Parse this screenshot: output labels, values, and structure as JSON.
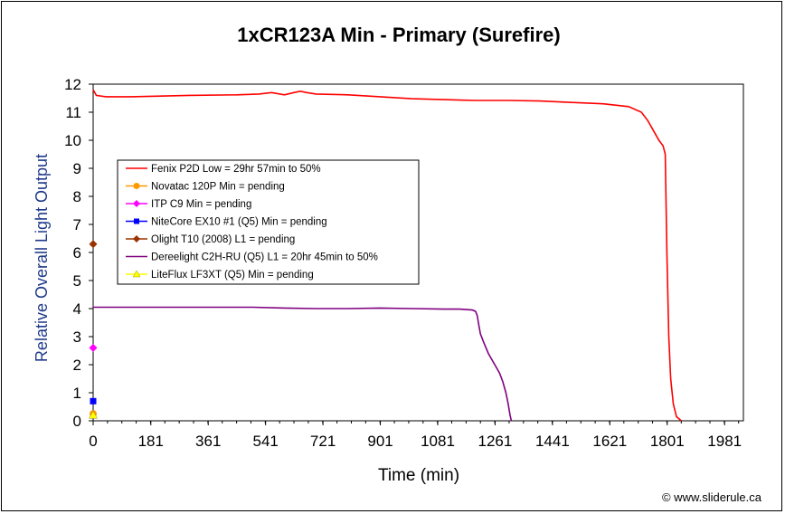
{
  "chart_data": {
    "type": "line",
    "title": "1xCR123A Min - Primary (Surefire)",
    "xlabel": "Time (min)",
    "ylabel": "Relative Overall Light Output",
    "xlim": [
      0,
      2040
    ],
    "ylim": [
      0,
      12
    ],
    "x_ticks": [
      "0",
      "181",
      "361",
      "541",
      "721",
      "901",
      "1081",
      "1261",
      "1441",
      "1621",
      "1801",
      "1981"
    ],
    "y_ticks": [
      "0",
      "1",
      "2",
      "3",
      "4",
      "5",
      "6",
      "7",
      "8",
      "9",
      "10",
      "11",
      "12"
    ],
    "grid": false,
    "legend_position": "upper-left inside",
    "series": [
      {
        "name": "Fenix P2D Low = 29hr 57min to 50%",
        "color": "#ff0000",
        "marker": "none",
        "x": [
          0,
          10,
          40,
          120,
          300,
          450,
          520,
          560,
          600,
          630,
          650,
          670,
          700,
          800,
          900,
          1000,
          1100,
          1200,
          1300,
          1400,
          1500,
          1600,
          1680,
          1720,
          1740,
          1760,
          1775,
          1788,
          1795,
          1800,
          1806,
          1812,
          1820,
          1830,
          1845
        ],
        "y": [
          11.8,
          11.6,
          11.55,
          11.55,
          11.6,
          11.62,
          11.65,
          11.7,
          11.62,
          11.7,
          11.75,
          11.7,
          11.65,
          11.62,
          11.55,
          11.48,
          11.45,
          11.42,
          11.42,
          11.4,
          11.35,
          11.3,
          11.2,
          11.0,
          10.7,
          10.3,
          10.0,
          9.8,
          9.5,
          6.0,
          3.0,
          1.5,
          0.6,
          0.15,
          0
        ]
      },
      {
        "name": "Novatac 120P Min = pending",
        "color": "#ff9900",
        "marker": "circle",
        "x": [
          0
        ],
        "y": [
          0.25
        ]
      },
      {
        "name": "ITP C9 Min = pending",
        "color": "#ff00ff",
        "marker": "diamond",
        "x": [
          0
        ],
        "y": [
          2.6
        ]
      },
      {
        "name": "NiteCore EX10 #1 (Q5) Min = pending",
        "color": "#0000ff",
        "marker": "square",
        "x": [
          0
        ],
        "y": [
          0.7
        ]
      },
      {
        "name": "Olight T10 (2008) L1 = pending",
        "color": "#993300",
        "marker": "diamond",
        "x": [
          0
        ],
        "y": [
          6.3
        ]
      },
      {
        "name": "Dereelight C2H-RU (Q5) L1 = 20hr 45min to 50%",
        "color": "#800080",
        "marker": "none",
        "x": [
          0,
          100,
          300,
          500,
          600,
          700,
          800,
          900,
          1000,
          1100,
          1150,
          1190,
          1200,
          1205,
          1210,
          1215,
          1225,
          1240,
          1260,
          1275,
          1285,
          1295,
          1302,
          1308,
          1312
        ],
        "y": [
          4.05,
          4.05,
          4.05,
          4.05,
          4.02,
          4.0,
          4.0,
          4.02,
          4.0,
          3.98,
          3.98,
          3.95,
          3.9,
          3.75,
          3.4,
          3.1,
          2.8,
          2.4,
          2.0,
          1.7,
          1.4,
          1.0,
          0.6,
          0.2,
          0
        ]
      },
      {
        "name": "LiteFlux LF3XT (Q5) Min = pending",
        "color": "#ffff00",
        "marker": "triangle",
        "x": [
          0
        ],
        "y": [
          0.2
        ]
      }
    ]
  },
  "credit": "© www.sliderule.ca"
}
